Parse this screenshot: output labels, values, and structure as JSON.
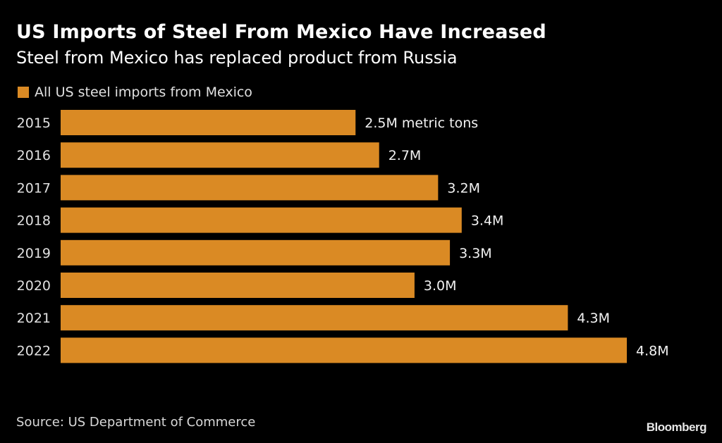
{
  "header": {
    "title": "US Imports of Steel From Mexico Have Increased",
    "subtitle": "Steel from Mexico has replaced product from Russia"
  },
  "footer": {
    "source": "Source: US Department of Commerce",
    "brand": "Bloomberg"
  },
  "colors": {
    "background": "#000000",
    "bar": "#da8a24",
    "text": "#ffffff"
  },
  "chart_data": {
    "type": "bar",
    "orientation": "horizontal",
    "title": "US Imports of Steel From Mexico Have Increased",
    "subtitle": "Steel from Mexico has replaced product from Russia",
    "xlabel": "",
    "ylabel": "",
    "unit": "million metric tons",
    "categories": [
      "2015",
      "2016",
      "2017",
      "2018",
      "2019",
      "2020",
      "2021",
      "2022"
    ],
    "series": [
      {
        "name": "All US steel imports from Mexico",
        "values": [
          2.5,
          2.7,
          3.2,
          3.4,
          3.3,
          3.0,
          4.3,
          4.8
        ],
        "labels": [
          "2.5M metric tons",
          "2.7M",
          "3.2M",
          "3.4M",
          "3.3M",
          "3.0M",
          "4.3M",
          "4.8M"
        ]
      }
    ],
    "xlim": [
      0,
      4.8
    ],
    "grid": false,
    "legend": "top-left"
  }
}
